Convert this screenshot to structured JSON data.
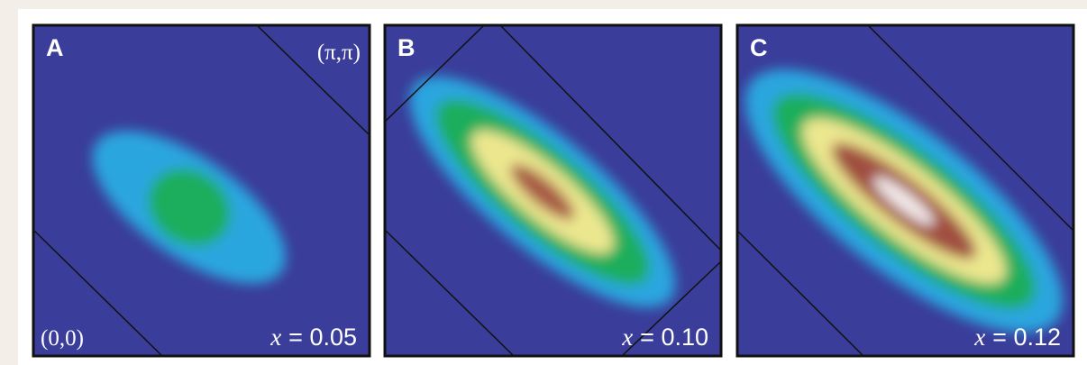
{
  "panels": [
    {
      "label": "A",
      "corner_top_right": "(π,π)",
      "corner_bottom_left": "(0,0)",
      "doping": {
        "symbol": "x",
        "value": "= 0.05"
      }
    },
    {
      "label": "B",
      "doping": {
        "symbol": "x",
        "value": "= 0.10"
      }
    },
    {
      "label": "C",
      "doping": {
        "symbol": "x",
        "value": "= 0.12"
      }
    }
  ]
}
